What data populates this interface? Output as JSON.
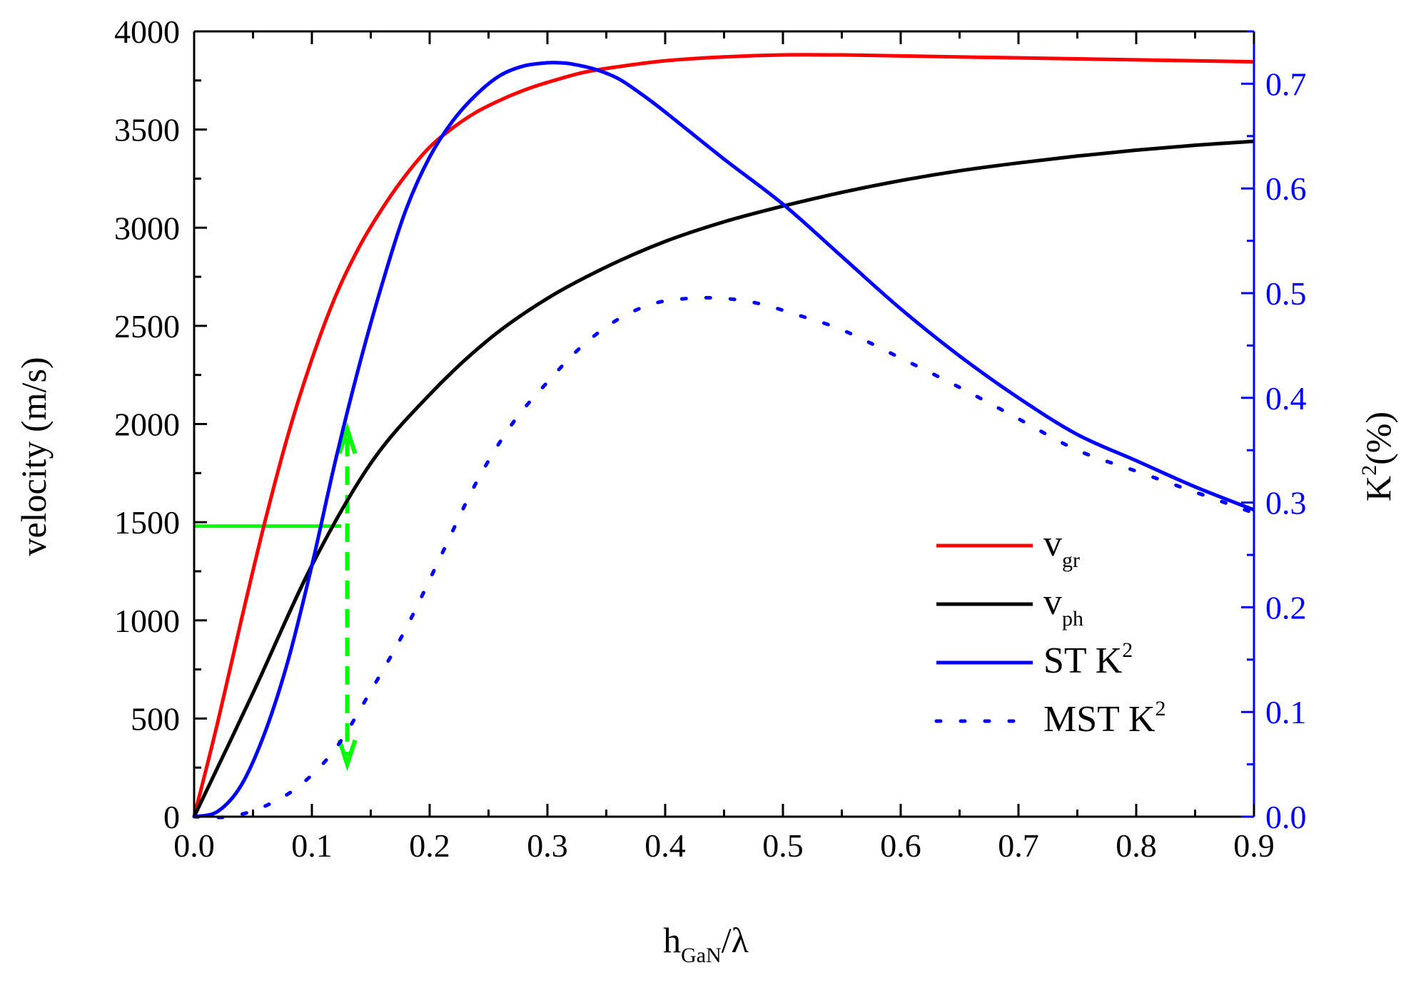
{
  "chart_data": {
    "type": "line",
    "title": "",
    "xlabel": {
      "main": "h",
      "sub": "GaN",
      "suffix": "/λ"
    },
    "ylabel": "velocity (m/s)",
    "y2label": {
      "main": "K",
      "sup": "2",
      "suffix": "(%)"
    },
    "xlim": [
      0,
      0.9
    ],
    "ylim": [
      0,
      4000
    ],
    "y2lim": [
      0,
      0.75
    ],
    "x_ticks": [
      0.0,
      0.1,
      0.2,
      0.3,
      0.4,
      0.5,
      0.6,
      0.7,
      0.8,
      0.9
    ],
    "x_tick_labels": [
      "0.0",
      "0.1",
      "0.2",
      "0.3",
      "0.4",
      "0.5",
      "0.6",
      "0.7",
      "0.8",
      "0.9"
    ],
    "y_ticks": [
      0,
      500,
      1000,
      1500,
      2000,
      2500,
      3000,
      3500,
      4000
    ],
    "y_tick_labels": [
      "0",
      "500",
      "1000",
      "1500",
      "2000",
      "2500",
      "3000",
      "3500",
      "4000"
    ],
    "y2_ticks": [
      0.0,
      0.1,
      0.2,
      0.3,
      0.4,
      0.5,
      0.6,
      0.7
    ],
    "y2_tick_labels": [
      "0.0",
      "0.1",
      "0.2",
      "0.3",
      "0.4",
      "0.5",
      "0.6",
      "0.7"
    ],
    "grid": false,
    "legend_position": "bottom-right",
    "series": [
      {
        "name": "v_gr",
        "label_main": "v",
        "label_sub": "gr",
        "label_sup": "",
        "axis": "left",
        "color": "#ff0000",
        "style": "solid",
        "x": [
          0.0,
          0.02,
          0.04,
          0.06,
          0.08,
          0.1,
          0.12,
          0.14,
          0.16,
          0.18,
          0.2,
          0.22,
          0.24,
          0.26,
          0.28,
          0.3,
          0.33,
          0.36,
          0.4,
          0.45,
          0.5,
          0.55,
          0.6,
          0.7,
          0.8,
          0.9
        ],
        "y": [
          0,
          480,
          1000,
          1500,
          1950,
          2330,
          2650,
          2900,
          3100,
          3270,
          3410,
          3510,
          3590,
          3650,
          3700,
          3740,
          3790,
          3820,
          3850,
          3870,
          3880,
          3880,
          3875,
          3865,
          3855,
          3845
        ]
      },
      {
        "name": "v_ph",
        "label_main": "v",
        "label_sub": "ph",
        "label_sup": "",
        "axis": "left",
        "color": "#000000",
        "style": "solid",
        "x": [
          0.0,
          0.05,
          0.1,
          0.15,
          0.2,
          0.25,
          0.3,
          0.35,
          0.4,
          0.45,
          0.5,
          0.55,
          0.6,
          0.65,
          0.7,
          0.75,
          0.8,
          0.85,
          0.9
        ],
        "y": [
          0,
          630,
          1280,
          1800,
          2150,
          2430,
          2640,
          2800,
          2930,
          3030,
          3110,
          3180,
          3240,
          3290,
          3330,
          3365,
          3395,
          3420,
          3440
        ]
      },
      {
        "name": "ST K^2",
        "label_main": "ST K",
        "label_sub": "",
        "label_sup": "2",
        "axis": "right",
        "color": "#0000ff",
        "style": "solid",
        "x": [
          0.0,
          0.02,
          0.04,
          0.06,
          0.08,
          0.1,
          0.12,
          0.14,
          0.16,
          0.18,
          0.2,
          0.22,
          0.24,
          0.26,
          0.28,
          0.3,
          0.31,
          0.32,
          0.34,
          0.36,
          0.38,
          0.4,
          0.45,
          0.5,
          0.55,
          0.6,
          0.65,
          0.7,
          0.75,
          0.8,
          0.85,
          0.9
        ],
        "y": [
          0.0,
          0.005,
          0.03,
          0.08,
          0.15,
          0.24,
          0.34,
          0.43,
          0.51,
          0.58,
          0.63,
          0.665,
          0.69,
          0.708,
          0.717,
          0.72,
          0.72,
          0.719,
          0.714,
          0.705,
          0.69,
          0.673,
          0.628,
          0.585,
          0.535,
          0.485,
          0.44,
          0.4,
          0.365,
          0.34,
          0.315,
          0.293
        ]
      },
      {
        "name": "MST K^2",
        "label_main": "MST K",
        "label_sub": "",
        "label_sup": "2",
        "axis": "right",
        "color": "#0000ff",
        "style": "dotted",
        "x": [
          0.0,
          0.03,
          0.06,
          0.09,
          0.12,
          0.15,
          0.18,
          0.21,
          0.24,
          0.27,
          0.3,
          0.33,
          0.36,
          0.39,
          0.42,
          0.45,
          0.48,
          0.51,
          0.55,
          0.6,
          0.65,
          0.7,
          0.75,
          0.8,
          0.85,
          0.9
        ],
        "y": [
          0.0,
          0.0,
          0.01,
          0.03,
          0.065,
          0.12,
          0.18,
          0.25,
          0.32,
          0.375,
          0.415,
          0.45,
          0.475,
          0.49,
          0.495,
          0.495,
          0.49,
          0.48,
          0.465,
          0.438,
          0.41,
          0.38,
          0.35,
          0.33,
          0.31,
          0.29
        ]
      }
    ],
    "annotations": [
      {
        "type": "horizontal-line",
        "color": "#00ff00",
        "style": "solid",
        "x": [
          0.0,
          0.125
        ],
        "y": 1480,
        "axis": "left"
      },
      {
        "type": "vertical-double-arrow",
        "color": "#00ff00",
        "style": "dashed",
        "x": 0.13,
        "y": [
          0.05,
          0.37
        ],
        "axis": "right"
      }
    ],
    "colors": {
      "left_axis": "#000000",
      "right_axis": "#0000ff"
    }
  }
}
